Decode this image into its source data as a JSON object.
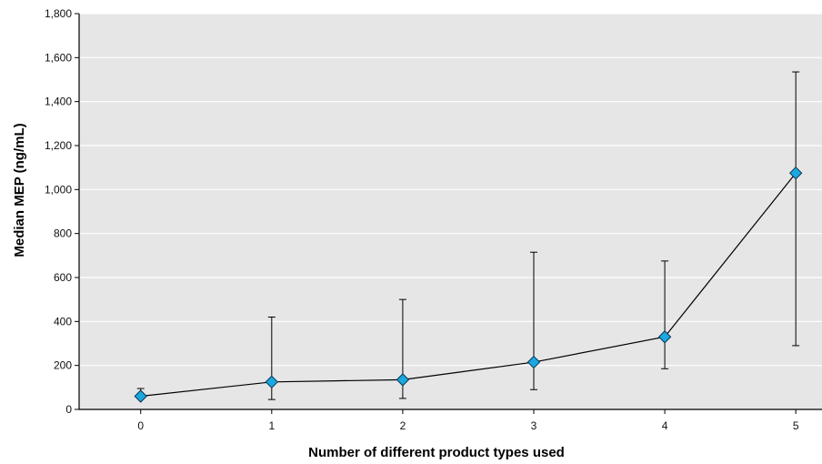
{
  "chart_data": {
    "type": "line",
    "title": "",
    "xlabel": "Number of different product types used",
    "ylabel": "Median MEP (ng/mL)",
    "x": [
      0,
      1,
      2,
      3,
      4,
      5
    ],
    "x_tick_labels": [
      "0",
      "1",
      "2",
      "3",
      "4",
      "5"
    ],
    "xlim": [
      -0.47,
      5.2
    ],
    "ylim": [
      0,
      1800
    ],
    "y_ticks": [
      0,
      200,
      400,
      600,
      800,
      1000,
      1200,
      1400,
      1600,
      1800
    ],
    "y_tick_labels": [
      "0",
      "200",
      "400",
      "600",
      "800",
      "1,000",
      "1,200",
      "1,400",
      "1,600",
      "1,800"
    ],
    "grid": "horizontal",
    "series": [
      {
        "values": [
          60,
          125,
          135,
          215,
          330,
          1075
        ],
        "error_low": [
          50,
          45,
          50,
          90,
          185,
          290
        ],
        "error_high": [
          95,
          420,
          500,
          715,
          675,
          1535
        ]
      }
    ],
    "colors": {
      "plot_background": "#e6e6e6",
      "gridline": "#ffffff",
      "marker_fill": "#1ba7e0",
      "marker_stroke": "#0a3550",
      "line": "#000000",
      "error_bar": "#000000"
    }
  }
}
